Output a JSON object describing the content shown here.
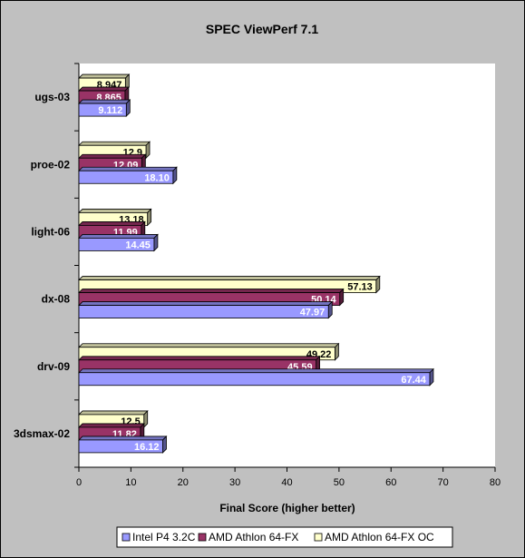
{
  "chart_data": {
    "type": "bar",
    "orientation": "horizontal",
    "title": "SPEC ViewPerf 7.1",
    "xlabel": "Final Score (higher better)",
    "ylabel": "",
    "xlim": [
      0,
      80
    ],
    "x_ticks": [
      0,
      10,
      20,
      30,
      40,
      50,
      60,
      70,
      80
    ],
    "categories": [
      "ugs-03",
      "proe-02",
      "light-06",
      "dx-08",
      "drv-09",
      "3dsmax-02"
    ],
    "series": [
      {
        "name": "Intel P4 3.2C",
        "color": "#9999ff",
        "label_color": "#ffffff",
        "values": [
          9.112,
          18.1,
          14.45,
          47.97,
          67.44,
          16.12
        ],
        "labels": [
          "9.112",
          "18.10",
          "14.45",
          "47.97",
          "67.44",
          "16.12"
        ]
      },
      {
        "name": "AMD Athlon 64-FX",
        "color": "#993366",
        "label_color": "#ffffff",
        "values": [
          8.865,
          12.09,
          11.99,
          50.14,
          45.59,
          11.82
        ],
        "labels": [
          "8.865",
          "12.09",
          "11.99",
          "50.14",
          "45.59",
          "11.82"
        ]
      },
      {
        "name": "AMD Athlon 64-FX OC",
        "color": "#ffffcc",
        "label_color": "#000000",
        "values": [
          8.947,
          12.9,
          13.18,
          57.13,
          49.22,
          12.5
        ],
        "labels": [
          "8.947",
          "12.9",
          "13.18",
          "57.13",
          "49.22",
          "12.5"
        ]
      }
    ],
    "grid": false,
    "legend_position": "bottom"
  }
}
